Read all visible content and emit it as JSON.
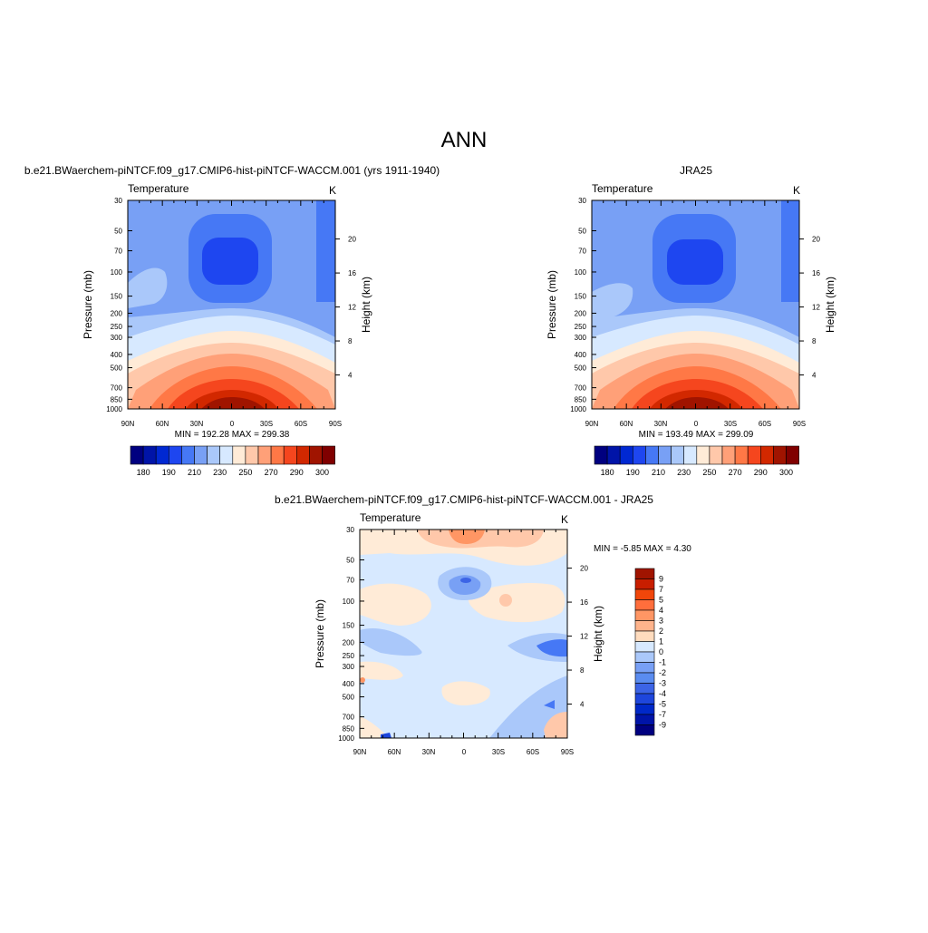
{
  "page_title": "ANN",
  "panels": [
    {
      "id": "model",
      "header": "b.e21.BWaerchem-piNTCF.f09_g17.CMIP6-hist-piNTCF-WACCM.001 (yrs 1911-1940)",
      "variable": "Temperature",
      "units": "K",
      "ylabel_left": "Pressure (mb)",
      "ylabel_right": "Height (km)",
      "stats": "MIN = 192.28  MAX = 299.38"
    },
    {
      "id": "obs",
      "header": "JRA25",
      "variable": "Temperature",
      "units": "K",
      "ylabel_left": "Pressure (mb)",
      "ylabel_right": "Height (km)",
      "stats": "MIN = 193.49  MAX = 299.09"
    },
    {
      "id": "diff",
      "header": "b.e21.BWaerchem-piNTCF.f09_g17.CMIP6-hist-piNTCF-WACCM.001 - JRA25",
      "variable": "Temperature",
      "units": "K",
      "ylabel_left": "Pressure (mb)",
      "ylabel_right": "Height (km)",
      "stats": "MIN =  -5.85  MAX =   4.30"
    }
  ],
  "axes": {
    "lat_ticks": [
      "90N",
      "60N",
      "30N",
      "0",
      "30S",
      "60S",
      "90S"
    ],
    "pressure_ticks": [
      "30",
      "50",
      "70",
      "100",
      "150",
      "200",
      "250",
      "300",
      "400",
      "500",
      "700",
      "850",
      "1000"
    ],
    "pressure_values": [
      30,
      50,
      70,
      100,
      150,
      200,
      250,
      300,
      400,
      500,
      700,
      850,
      1000
    ],
    "height_ticks": [
      "20",
      "16",
      "12",
      "8",
      "4"
    ],
    "height_values": [
      20,
      16,
      12,
      8,
      4
    ]
  },
  "colorbars": {
    "full": {
      "colors": [
        "#000080",
        "#0014a8",
        "#0028d2",
        "#1e46f0",
        "#4678f5",
        "#78a0f5",
        "#aac8fa",
        "#d7e9ff",
        "#ffebd7",
        "#ffc8aa",
        "#ffa078",
        "#ff7846",
        "#f5461e",
        "#d22800",
        "#a01400",
        "#800000"
      ],
      "labels": [
        "180",
        "190",
        "210",
        "230",
        "250",
        "270",
        "290",
        "300"
      ]
    },
    "diff": {
      "colors": [
        "#a01400",
        "#c81e00",
        "#f0460a",
        "#ff6e3c",
        "#ff9664",
        "#ffb48c",
        "#ffdcbe",
        "#d7e9ff",
        "#aac8fa",
        "#78a0f5",
        "#5a8cf0",
        "#3c64e6",
        "#1e46dc",
        "#0028c8",
        "#0014a8",
        "#000080"
      ],
      "labels": [
        "9",
        "7",
        "5",
        "4",
        "3",
        "2",
        "1",
        "0",
        "-1",
        "-2",
        "-3",
        "-4",
        "-5",
        "-7",
        "-9"
      ]
    }
  },
  "chart_data": [
    {
      "type": "heatmap",
      "title": "b.e21.BWaerchem-piNTCF.f09_g17.CMIP6-hist-piNTCF-WACCM.001 (yrs 1911-1940)",
      "xlabel": "",
      "ylabel": "Pressure (mb)",
      "x_ticks": [
        "90N",
        "60N",
        "30N",
        "0",
        "30S",
        "60S",
        "90S"
      ],
      "y_range_mb": [
        30,
        1000
      ],
      "units": "K",
      "min": 192.28,
      "max": 299.38,
      "levels": [
        180,
        185,
        190,
        200,
        210,
        220,
        230,
        240,
        250,
        260,
        270,
        280,
        290,
        295,
        300
      ]
    },
    {
      "type": "heatmap",
      "title": "JRA25",
      "xlabel": "",
      "ylabel": "Pressure (mb)",
      "x_ticks": [
        "90N",
        "60N",
        "30N",
        "0",
        "30S",
        "60S",
        "90S"
      ],
      "y_range_mb": [
        30,
        1000
      ],
      "units": "K",
      "min": 193.49,
      "max": 299.09,
      "levels": [
        180,
        185,
        190,
        200,
        210,
        220,
        230,
        240,
        250,
        260,
        270,
        280,
        290,
        295,
        300
      ]
    },
    {
      "type": "heatmap",
      "title": "b.e21.BWaerchem-piNTCF.f09_g17.CMIP6-hist-piNTCF-WACCM.001 - JRA25",
      "xlabel": "",
      "ylabel": "Pressure (mb)",
      "x_ticks": [
        "90N",
        "60N",
        "30N",
        "0",
        "30S",
        "60S",
        "90S"
      ],
      "y_range_mb": [
        30,
        1000
      ],
      "units": "K",
      "min": -5.85,
      "max": 4.3,
      "levels": [
        -9,
        -7,
        -5,
        -4,
        -3,
        -2,
        -1,
        0,
        1,
        2,
        3,
        4,
        5,
        7,
        9
      ]
    }
  ]
}
